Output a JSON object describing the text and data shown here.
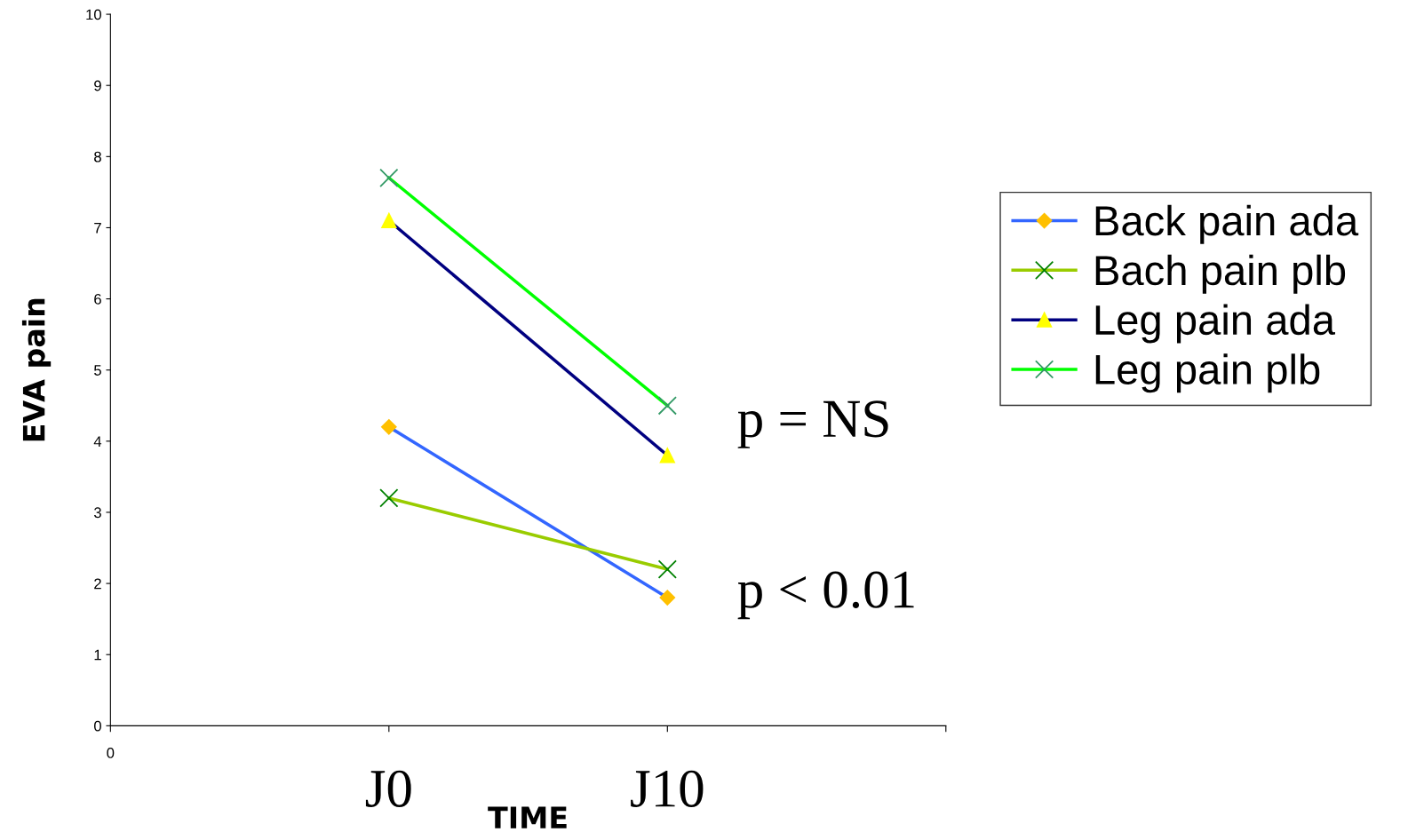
{
  "chart_data": {
    "type": "line",
    "xlabel": "TIME",
    "ylabel": "EVA pain",
    "categories": [
      "J0",
      "J10"
    ],
    "series": [
      {
        "name": "Back pain ada",
        "color": "#3366ff",
        "marker": "diamond",
        "colors": [
          "#ffc000",
          "#ffc000"
        ],
        "values": [
          4.2,
          1.8
        ]
      },
      {
        "name": "Bach pain plb",
        "color": "#99cc00",
        "marker": "cross",
        "colors": [
          "#008000",
          "#008000"
        ],
        "values": [
          3.2,
          2.2
        ]
      },
      {
        "name": "Leg pain ada",
        "color": "#000080",
        "marker": "triangle",
        "colors": [
          "#ffff00",
          "#ffff00"
        ],
        "values": [
          7.1,
          3.8
        ]
      },
      {
        "name": "Leg pain plb",
        "color": "#00ff00",
        "marker": "cross",
        "colors": [
          "#339966",
          "#339966"
        ],
        "values": [
          7.7,
          4.5
        ]
      }
    ],
    "ylim": [
      0,
      10
    ],
    "yticks": [
      0,
      1,
      2,
      3,
      4,
      5,
      6,
      7,
      8,
      9,
      10
    ],
    "annotations": [
      "0",
      "p = NS",
      "p < 0.01"
    ],
    "grid": false,
    "legend": "right",
    "line_style": "solid"
  }
}
